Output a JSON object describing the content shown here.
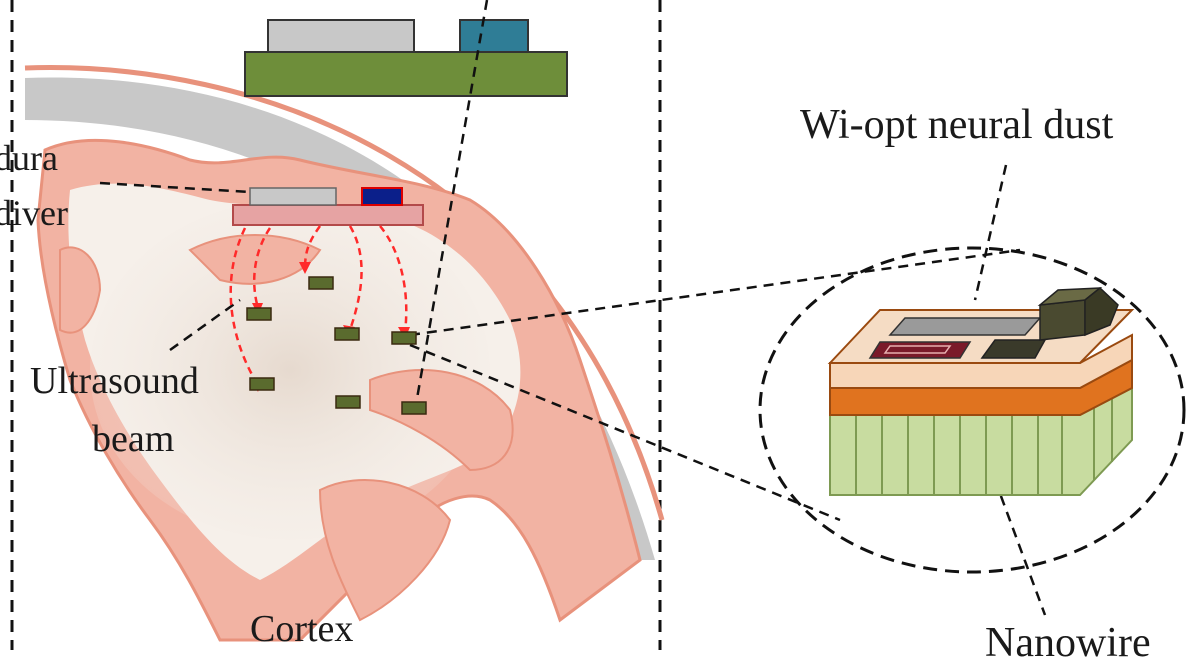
{
  "labels": {
    "dura": "dura",
    "diver": "diver",
    "ultrasound_line1": "Ultrasound",
    "ultrasound_line2": "beam",
    "cortex": "Cortex",
    "neural_dust": "Wi-opt neural dust",
    "nanowire": "Nanowire"
  },
  "colors": {
    "skull_gray": "#c8c8c8",
    "cortex_pink": "#f2b3a3",
    "cortex_edge": "#e8927c",
    "implant_green": "#6e8e3a",
    "interrogator_blue": "#2f7d96",
    "subdural_pink": "#d9898a",
    "subdural_navy": "#0b1f8a",
    "beam_red": "#ff2a2a",
    "dust_top": "#f7d6b8",
    "dust_orange": "#e0731f",
    "nanowire_green": "#c8dca0"
  }
}
